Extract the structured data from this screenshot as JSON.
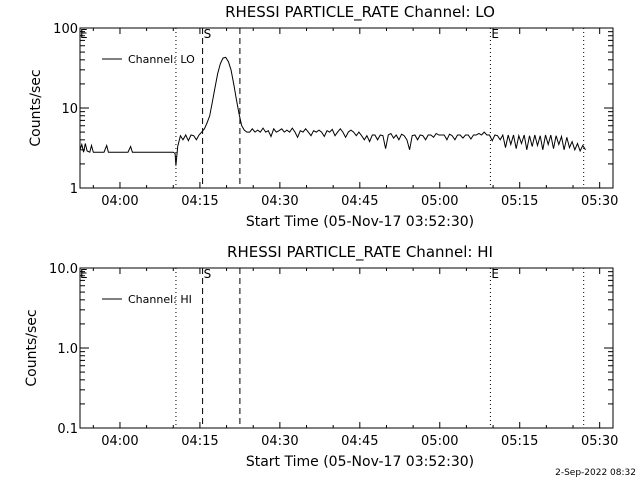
{
  "background": "#ffffff",
  "foreground": "#000000",
  "footer": {
    "date": "2-Sep-2022 08:32"
  },
  "chart_data": [
    {
      "type": "line",
      "title": "RHESSI PARTICLE_RATE Channel: LO",
      "xlabel": "Start Time (05-Nov-17 03:52:30)",
      "ylabel": "Counts/sec",
      "yscale": "log",
      "xlim": [
        "03:52:30",
        "05:32:30"
      ],
      "ylim": [
        1,
        100
      ],
      "x_ticks": [
        "04:00",
        "04:15",
        "04:30",
        "04:45",
        "05:00",
        "05:15",
        "05:30"
      ],
      "y_ticks": [
        "1",
        "10",
        "100"
      ],
      "legend": {
        "position": "top-left",
        "entries": [
          "Channel: LO"
        ]
      },
      "grid": false,
      "markers": [
        {
          "time": "04:10:30",
          "style": "dotted",
          "label": ""
        },
        {
          "time": "04:15:30",
          "style": "dashed",
          "label": "S"
        },
        {
          "time": "04:22:30",
          "style": "dashed",
          "label": ""
        },
        {
          "time": "05:09:30",
          "style": "dotted",
          "label": "E"
        },
        {
          "time": "05:27:00",
          "style": "dotted",
          "label": ""
        }
      ],
      "corner_labels": {
        "left": "E"
      },
      "series": [
        {
          "name": "Channel: LO",
          "points": [
            [
              "03:52:30",
              3.0
            ],
            [
              "03:52:50",
              3.5
            ],
            [
              "03:53:10",
              2.8
            ],
            [
              "03:53:30",
              3.6
            ],
            [
              "03:53:50",
              2.9
            ],
            [
              "03:54:20",
              2.8
            ],
            [
              "03:54:40",
              3.4
            ],
            [
              "03:55:00",
              2.8
            ],
            [
              "03:56:00",
              2.8
            ],
            [
              "03:57:00",
              2.8
            ],
            [
              "03:57:30",
              3.4
            ],
            [
              "03:57:50",
              2.8
            ],
            [
              "03:59:00",
              2.8
            ],
            [
              "04:00:00",
              2.8
            ],
            [
              "04:01:30",
              2.8
            ],
            [
              "04:02:00",
              3.3
            ],
            [
              "04:02:20",
              2.8
            ],
            [
              "04:04:00",
              2.8
            ],
            [
              "04:06:00",
              2.8
            ],
            [
              "04:08:00",
              2.8
            ],
            [
              "04:10:00",
              2.8
            ],
            [
              "04:10:20",
              2.7
            ],
            [
              "04:10:30",
              1.9
            ],
            [
              "04:10:50",
              3.3
            ],
            [
              "04:11:20",
              4.5
            ],
            [
              "04:11:50",
              4.0
            ],
            [
              "04:12:20",
              4.6
            ],
            [
              "04:12:50",
              3.9
            ],
            [
              "04:13:20",
              4.6
            ],
            [
              "04:13:50",
              4.5
            ],
            [
              "04:14:20",
              4.0
            ],
            [
              "04:14:50",
              4.6
            ],
            [
              "04:15:20",
              5.0
            ],
            [
              "04:15:50",
              5.5
            ],
            [
              "04:16:20",
              6.5
            ],
            [
              "04:16:50",
              8.0
            ],
            [
              "04:17:20",
              12.0
            ],
            [
              "04:17:50",
              18.0
            ],
            [
              "04:18:20",
              27.0
            ],
            [
              "04:18:50",
              36.0
            ],
            [
              "04:19:20",
              42.0
            ],
            [
              "04:19:50",
              43.0
            ],
            [
              "04:20:20",
              38.0
            ],
            [
              "04:20:50",
              30.0
            ],
            [
              "04:21:20",
              20.0
            ],
            [
              "04:21:50",
              13.0
            ],
            [
              "04:22:20",
              8.5
            ],
            [
              "04:22:50",
              6.0
            ],
            [
              "04:23:20",
              5.3
            ],
            [
              "04:23:50",
              5.0
            ],
            [
              "04:24:20",
              5.0
            ],
            [
              "04:24:50",
              5.5
            ],
            [
              "04:25:20",
              5.0
            ],
            [
              "04:25:50",
              5.3
            ],
            [
              "04:26:20",
              5.0
            ],
            [
              "04:26:50",
              5.6
            ],
            [
              "04:27:20",
              5.0
            ],
            [
              "04:27:50",
              5.2
            ],
            [
              "04:28:20",
              4.4
            ],
            [
              "04:28:50",
              5.5
            ],
            [
              "04:29:20",
              5.0
            ],
            [
              "04:29:50",
              5.2
            ],
            [
              "04:30:20",
              5.5
            ],
            [
              "04:30:50",
              5.0
            ],
            [
              "04:31:20",
              5.3
            ],
            [
              "04:31:50",
              5.0
            ],
            [
              "04:32:20",
              5.6
            ],
            [
              "04:32:50",
              5.0
            ],
            [
              "04:33:20",
              4.3
            ],
            [
              "04:33:50",
              5.2
            ],
            [
              "04:34:20",
              5.0
            ],
            [
              "04:34:50",
              5.5
            ],
            [
              "04:35:20",
              5.0
            ],
            [
              "04:35:50",
              4.5
            ],
            [
              "04:36:20",
              5.2
            ],
            [
              "04:36:50",
              5.0
            ],
            [
              "04:37:20",
              5.3
            ],
            [
              "04:37:50",
              5.0
            ],
            [
              "04:38:20",
              4.4
            ],
            [
              "04:38:50",
              5.2
            ],
            [
              "04:39:20",
              5.0
            ],
            [
              "04:39:50",
              5.4
            ],
            [
              "04:40:20",
              4.5
            ],
            [
              "04:40:50",
              5.0
            ],
            [
              "04:41:20",
              5.5
            ],
            [
              "04:41:50",
              5.0
            ],
            [
              "04:42:20",
              4.3
            ],
            [
              "04:42:50",
              5.0
            ],
            [
              "04:43:20",
              5.3
            ],
            [
              "04:43:50",
              5.0
            ],
            [
              "04:44:20",
              4.5
            ],
            [
              "04:44:50",
              5.0
            ],
            [
              "04:45:20",
              4.5
            ],
            [
              "04:45:50",
              4.0
            ],
            [
              "04:46:20",
              4.5
            ],
            [
              "04:46:50",
              3.8
            ],
            [
              "04:47:20",
              4.6
            ],
            [
              "04:47:50",
              4.6
            ],
            [
              "04:48:20",
              4.0
            ],
            [
              "04:48:50",
              4.6
            ],
            [
              "04:49:20",
              4.5
            ],
            [
              "04:49:50",
              3.1
            ],
            [
              "04:50:20",
              4.6
            ],
            [
              "04:50:50",
              4.8
            ],
            [
              "04:51:20",
              4.2
            ],
            [
              "04:51:50",
              4.6
            ],
            [
              "04:52:20",
              4.0
            ],
            [
              "04:52:50",
              4.7
            ],
            [
              "04:53:20",
              4.5
            ],
            [
              "04:53:50",
              4.0
            ],
            [
              "04:54:20",
              3.0
            ],
            [
              "04:54:50",
              4.5
            ],
            [
              "04:55:20",
              4.6
            ],
            [
              "04:55:50",
              4.0
            ],
            [
              "04:56:20",
              4.6
            ],
            [
              "04:56:50",
              4.5
            ],
            [
              "04:57:20",
              4.0
            ],
            [
              "04:57:50",
              4.6
            ],
            [
              "04:58:20",
              4.6
            ],
            [
              "04:58:50",
              4.3
            ],
            [
              "04:59:20",
              4.8
            ],
            [
              "04:59:50",
              4.6
            ],
            [
              "05:00:20",
              4.6
            ],
            [
              "05:00:50",
              4.6
            ],
            [
              "05:01:20",
              4.0
            ],
            [
              "05:01:50",
              4.7
            ],
            [
              "05:02:20",
              4.5
            ],
            [
              "05:02:50",
              4.0
            ],
            [
              "05:03:20",
              4.6
            ],
            [
              "05:03:50",
              4.6
            ],
            [
              "05:04:20",
              4.2
            ],
            [
              "05:04:50",
              4.6
            ],
            [
              "05:05:20",
              4.6
            ],
            [
              "05:05:50",
              4.1
            ],
            [
              "05:06:20",
              4.6
            ],
            [
              "05:06:50",
              4.6
            ],
            [
              "05:07:20",
              4.8
            ],
            [
              "05:07:50",
              4.6
            ],
            [
              "05:08:20",
              5.0
            ],
            [
              "05:08:50",
              4.6
            ],
            [
              "05:09:20",
              4.6
            ],
            [
              "05:09:50",
              3.9
            ],
            [
              "05:10:20",
              4.6
            ],
            [
              "05:10:50",
              4.5
            ],
            [
              "05:11:20",
              4.0
            ],
            [
              "05:11:50",
              4.6
            ],
            [
              "05:12:20",
              3.2
            ],
            [
              "05:12:50",
              4.6
            ],
            [
              "05:13:20",
              3.5
            ],
            [
              "05:13:50",
              4.6
            ],
            [
              "05:14:20",
              3.1
            ],
            [
              "05:14:50",
              4.5
            ],
            [
              "05:15:20",
              3.6
            ],
            [
              "05:15:50",
              4.6
            ],
            [
              "05:16:20",
              3.0
            ],
            [
              "05:16:50",
              4.5
            ],
            [
              "05:17:20",
              3.3
            ],
            [
              "05:17:50",
              4.6
            ],
            [
              "05:18:20",
              3.4
            ],
            [
              "05:18:50",
              4.5
            ],
            [
              "05:19:20",
              3.0
            ],
            [
              "05:19:50",
              4.6
            ],
            [
              "05:20:20",
              3.5
            ],
            [
              "05:20:50",
              4.6
            ],
            [
              "05:21:20",
              3.1
            ],
            [
              "05:21:50",
              4.5
            ],
            [
              "05:22:20",
              3.5
            ],
            [
              "05:22:50",
              4.4
            ],
            [
              "05:23:20",
              3.0
            ],
            [
              "05:23:50",
              4.3
            ],
            [
              "05:24:20",
              3.2
            ],
            [
              "05:24:50",
              3.8
            ],
            [
              "05:25:20",
              3.0
            ],
            [
              "05:25:50",
              3.6
            ],
            [
              "05:26:20",
              2.9
            ],
            [
              "05:26:50",
              3.4
            ],
            [
              "05:27:20",
              3.0
            ]
          ]
        }
      ]
    },
    {
      "type": "line",
      "title": "RHESSI PARTICLE_RATE Channel: HI",
      "xlabel": "Start Time (05-Nov-17 03:52:30)",
      "ylabel": "Counts/sec",
      "yscale": "log",
      "xlim": [
        "03:52:30",
        "05:32:30"
      ],
      "ylim": [
        0.1,
        10
      ],
      "x_ticks": [
        "04:00",
        "04:15",
        "04:30",
        "04:45",
        "05:00",
        "05:15",
        "05:30"
      ],
      "y_ticks": [
        "0.1",
        "1.0",
        "10.0"
      ],
      "legend": {
        "position": "top-left",
        "entries": [
          "Channel: HI"
        ]
      },
      "grid": false,
      "markers": [
        {
          "time": "04:10:30",
          "style": "dotted",
          "label": ""
        },
        {
          "time": "04:15:30",
          "style": "dashed",
          "label": "S"
        },
        {
          "time": "04:22:30",
          "style": "dashed",
          "label": ""
        },
        {
          "time": "05:09:30",
          "style": "dotted",
          "label": "E"
        },
        {
          "time": "05:27:00",
          "style": "dotted",
          "label": ""
        }
      ],
      "corner_labels": {
        "left": "E"
      },
      "series": [
        {
          "name": "Channel: HI",
          "points": []
        }
      ]
    }
  ]
}
